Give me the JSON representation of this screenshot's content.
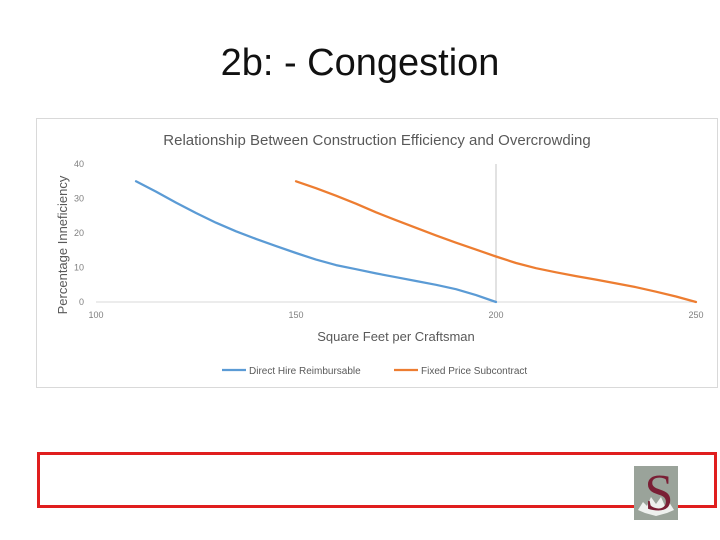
{
  "slide": {
    "title": "2b: - Congestion"
  },
  "logo": {
    "letter": "S",
    "icon": "maple-leaf-logo-icon",
    "colors": {
      "letter": "#7a1f35",
      "plate": "#9aa39a"
    }
  },
  "colors": {
    "frame_border": "#e01e1e"
  },
  "chart_data": {
    "type": "line",
    "title": "Relationship Between Construction Efficiency and Overcrowding",
    "xlabel": "Square Feet per Craftsman",
    "ylabel": "Percentage Inneficiency",
    "xlim": [
      100,
      250
    ],
    "ylim": [
      0,
      40
    ],
    "xticks": [
      100,
      150,
      200,
      250
    ],
    "yticks": [
      0,
      10,
      20,
      30,
      40
    ],
    "grid": false,
    "legend_position": "bottom",
    "series": [
      {
        "name": "Direct Hire Reimbursable",
        "color": "#5b9bd5",
        "x": [
          110,
          115,
          120,
          125,
          130,
          135,
          140,
          145,
          150,
          155,
          160,
          165,
          170,
          175,
          180,
          185,
          190,
          195,
          200
        ],
        "y": [
          35,
          32,
          28.8,
          25.8,
          23,
          20.5,
          18.3,
          16.2,
          14.2,
          12.3,
          10.7,
          9.5,
          8.3,
          7.2,
          6.1,
          5,
          3.7,
          2,
          0
        ]
      },
      {
        "name": "Fixed Price Subcontract",
        "color": "#ed7d31",
        "x": [
          150,
          155,
          160,
          165,
          170,
          175,
          180,
          185,
          190,
          195,
          200,
          205,
          210,
          215,
          220,
          225,
          230,
          235,
          240,
          245,
          250
        ],
        "y": [
          35,
          33,
          30.8,
          28.5,
          26,
          23.7,
          21.5,
          19.3,
          17.2,
          15.2,
          13.2,
          11.3,
          9.8,
          8.6,
          7.5,
          6.5,
          5.4,
          4.3,
          3,
          1.6,
          0
        ]
      }
    ]
  }
}
